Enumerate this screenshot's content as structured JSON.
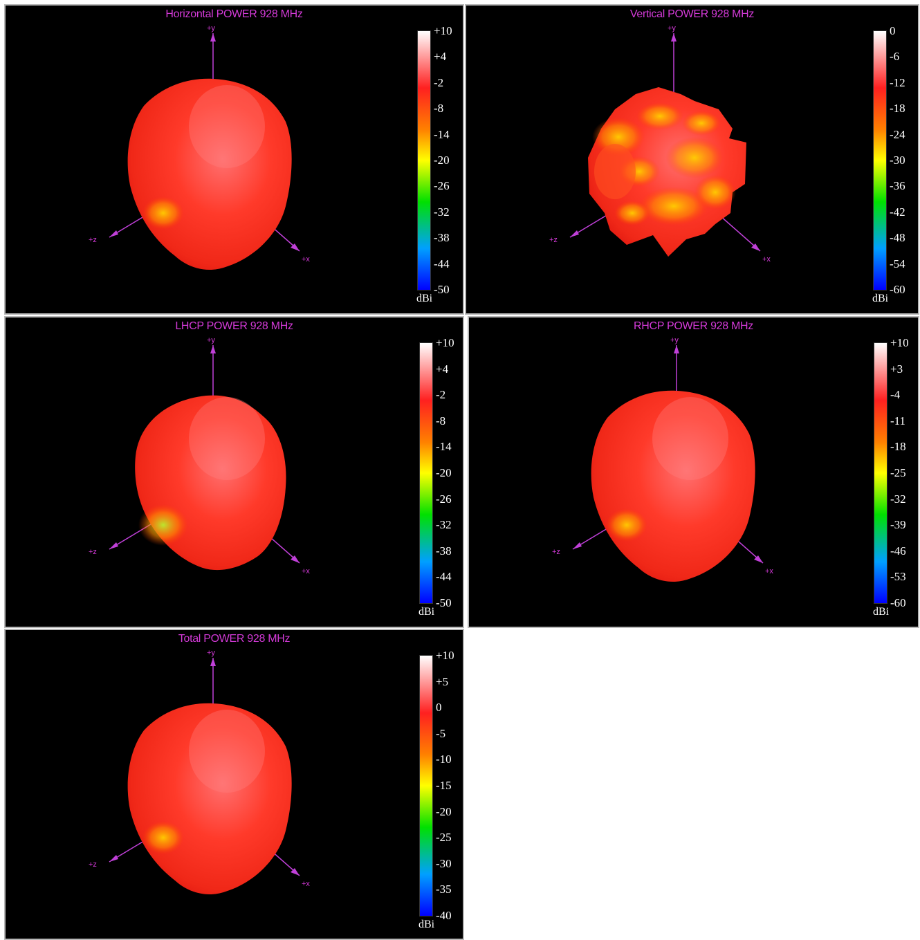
{
  "panels": [
    {
      "title": "Horizontal POWER 928  MHz",
      "unit": "dBi",
      "ticks": [
        "+10",
        "+4",
        "-2",
        "-8",
        "-14",
        "-20",
        "-26",
        "-32",
        "-38",
        "-44",
        "-50"
      ],
      "axis_labels": {
        "y": "+y",
        "z": "+z",
        "x": "+x"
      },
      "pattern_style": "smooth"
    },
    {
      "title": "Vertical POWER 928  MHz",
      "unit": "dBi",
      "ticks": [
        "0",
        "-6",
        "-12",
        "-18",
        "-24",
        "-30",
        "-36",
        "-42",
        "-48",
        "-54",
        "-60"
      ],
      "axis_labels": {
        "y": "+y",
        "z": "+z",
        "x": "+x"
      },
      "pattern_style": "mottled"
    },
    {
      "title": "LHCP POWER 928  MHz",
      "unit": "dBi",
      "ticks": [
        "+10",
        "+4",
        "-2",
        "-8",
        "-14",
        "-20",
        "-26",
        "-32",
        "-38",
        "-44",
        "-50"
      ],
      "axis_labels": {
        "y": "+y",
        "z": "+z",
        "x": "+x"
      },
      "pattern_style": "lhcp"
    },
    {
      "title": "RHCP POWER 928  MHz",
      "unit": "dBi",
      "ticks": [
        "+10",
        "+3",
        "-4",
        "-11",
        "-18",
        "-25",
        "-32",
        "-39",
        "-46",
        "-53",
        "-60"
      ],
      "axis_labels": {
        "y": "+y",
        "z": "+z",
        "x": "+x"
      },
      "pattern_style": "smooth"
    },
    {
      "title": "Total POWER 928  MHz",
      "unit": "dBi",
      "ticks": [
        "+10",
        "+5",
        "0",
        "-5",
        "-10",
        "-15",
        "-20",
        "-25",
        "-30",
        "-35",
        "-40"
      ],
      "axis_labels": {
        "y": "+y",
        "z": "+z",
        "x": "+x"
      },
      "pattern_style": "smooth"
    }
  ],
  "colors": {
    "background": "#000000",
    "title": "#d43ad8",
    "axis": "#c040d8",
    "colorbar": [
      "#ffffff",
      "#ff2020",
      "#ffff00",
      "#00e000",
      "#00a0ff",
      "#0000ff"
    ]
  }
}
